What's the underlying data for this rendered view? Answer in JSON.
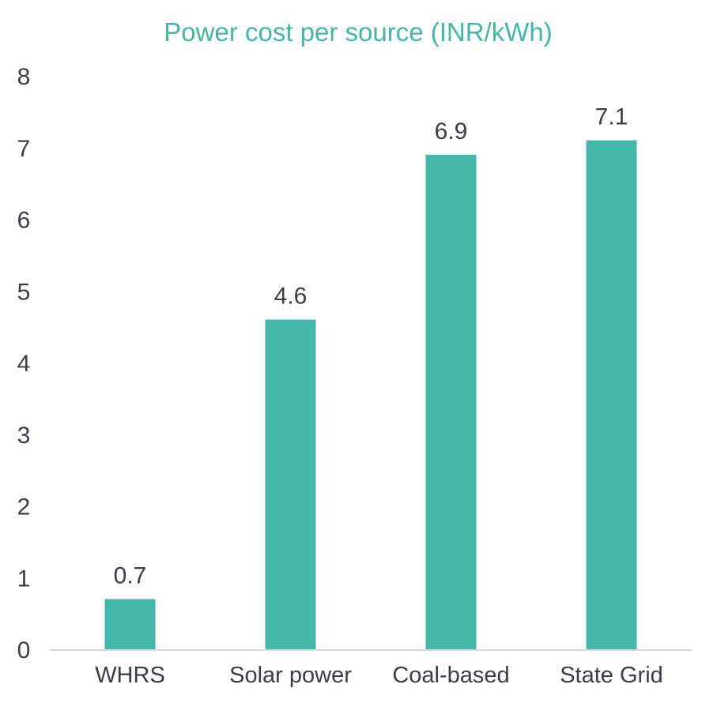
{
  "chart_data": {
    "type": "bar",
    "title": "Power cost per source (INR/kWh)",
    "xlabel": "",
    "ylabel": "",
    "categories": [
      "WHRS",
      "Solar power",
      "Coal-based",
      "State Grid"
    ],
    "values": [
      0.7,
      4.6,
      6.9,
      7.1
    ],
    "data_labels": [
      "0.7",
      "4.6",
      "6.9",
      "7.1"
    ],
    "ylim": [
      0,
      8
    ],
    "yticks": [
      "0",
      "1",
      "2",
      "3",
      "4",
      "5",
      "6",
      "7",
      "8"
    ],
    "grid": false,
    "legend": "none",
    "colors": {
      "bar": "#44b7a8",
      "title": "#44b5a6",
      "text": "#3c3c46",
      "axis": "#d9d9d9"
    }
  }
}
